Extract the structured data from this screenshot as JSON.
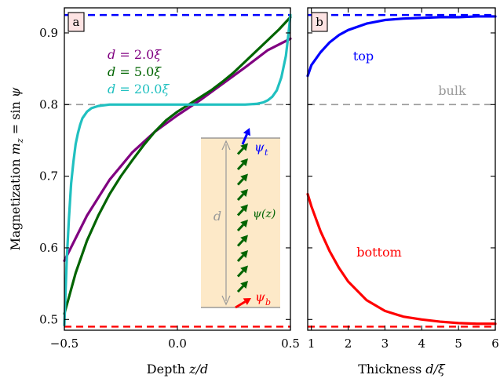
{
  "chart_data": [
    {
      "panel_label": "a",
      "type": "line",
      "xlabel_text": "Depth ",
      "xlabel_var": "z/d",
      "ylabel_text": "Magnetization ",
      "ylabel_var": "m_z = sin ψ",
      "xlim": [
        -0.5,
        0.5
      ],
      "ylim": [
        0.485,
        0.935
      ],
      "xticks": [
        -0.5,
        0.0,
        0.5
      ],
      "xtick_labels": [
        "−0.5",
        "0.0",
        "0.5"
      ],
      "yticks": [
        0.5,
        0.6,
        0.7,
        0.8,
        0.9
      ],
      "ytick_labels": [
        "0.5",
        "0.6",
        "0.7",
        "0.8",
        "0.9"
      ],
      "reference_lines": [
        {
          "y": 0.925,
          "color": "#0000ff",
          "style": "dashed"
        },
        {
          "y": 0.8,
          "color": "#999999",
          "style": "dashed"
        },
        {
          "y": 0.49,
          "color": "#ff0000",
          "style": "dashed"
        }
      ],
      "series": [
        {
          "name": "d = 2.0ξ",
          "color": "#800080",
          "x": [
            -0.5,
            -0.4,
            -0.3,
            -0.2,
            -0.1,
            0.0,
            0.1,
            0.2,
            0.3,
            0.4,
            0.5
          ],
          "y": [
            0.582,
            0.645,
            0.695,
            0.733,
            0.762,
            0.785,
            0.806,
            0.829,
            0.852,
            0.876,
            0.892
          ]
        },
        {
          "name": "d = 5.0ξ",
          "color": "#006400",
          "x": [
            -0.5,
            -0.45,
            -0.4,
            -0.35,
            -0.3,
            -0.25,
            -0.2,
            -0.15,
            -0.1,
            -0.05,
            0.0,
            0.05,
            0.1,
            0.15,
            0.2,
            0.25,
            0.3,
            0.35,
            0.4,
            0.45,
            0.5
          ],
          "y": [
            0.508,
            0.565,
            0.61,
            0.645,
            0.675,
            0.7,
            0.722,
            0.743,
            0.762,
            0.778,
            0.79,
            0.8,
            0.81,
            0.82,
            0.832,
            0.845,
            0.86,
            0.875,
            0.89,
            0.905,
            0.922
          ]
        },
        {
          "name": "d = 20.0ξ",
          "color": "#20c0c0",
          "x": [
            -0.5,
            -0.49,
            -0.48,
            -0.47,
            -0.46,
            -0.45,
            -0.44,
            -0.43,
            -0.42,
            -0.4,
            -0.38,
            -0.35,
            -0.3,
            -0.2,
            -0.1,
            0.0,
            0.1,
            0.2,
            0.3,
            0.35,
            0.38,
            0.4,
            0.42,
            0.44,
            0.46,
            0.48,
            0.49,
            0.5
          ],
          "y": [
            0.492,
            0.58,
            0.64,
            0.69,
            0.72,
            0.745,
            0.76,
            0.772,
            0.781,
            0.79,
            0.795,
            0.798,
            0.8,
            0.8,
            0.8,
            0.8,
            0.8,
            0.8,
            0.8,
            0.801,
            0.803,
            0.806,
            0.811,
            0.82,
            0.838,
            0.868,
            0.895,
            0.925
          ]
        }
      ],
      "legend": [
        "d = 2.0ξ",
        "d = 5.0ξ",
        "d = 20.0ξ"
      ],
      "inset": {
        "top_label": "ψ_t",
        "middle_label": "ψ(z)",
        "bottom_label": "ψ_b",
        "dimension_label": "d",
        "colors": {
          "top": "#0000ff",
          "middle": "#006400",
          "bottom": "#ff0000",
          "box": "#fde9c8",
          "dim": "#999999"
        }
      }
    },
    {
      "panel_label": "b",
      "type": "line",
      "xlabel_text": "Thickness ",
      "xlabel_var": "d/ξ",
      "xlim": [
        0.9,
        6.0
      ],
      "ylim": [
        0.485,
        0.935
      ],
      "xticks": [
        1,
        2,
        3,
        4,
        5,
        6
      ],
      "xtick_labels": [
        "1",
        "2",
        "3",
        "4",
        "5",
        "6"
      ],
      "reference_lines": [
        {
          "y": 0.925,
          "color": "#0000ff",
          "style": "dashed"
        },
        {
          "y": 0.8,
          "color": "#999999",
          "style": "dashed"
        },
        {
          "y": 0.49,
          "color": "#ff0000",
          "style": "dashed"
        }
      ],
      "series": [
        {
          "name": "top",
          "color": "#0000ff",
          "x": [
            0.9,
            1.0,
            1.25,
            1.5,
            1.75,
            2.0,
            2.5,
            3.0,
            3.5,
            4.0,
            4.5,
            5.0,
            5.5,
            6.0
          ],
          "y": [
            0.84,
            0.855,
            0.873,
            0.887,
            0.897,
            0.904,
            0.913,
            0.918,
            0.92,
            0.921,
            0.922,
            0.922,
            0.923,
            0.923
          ]
        },
        {
          "name": "bottom",
          "color": "#ff0000",
          "x": [
            0.9,
            1.0,
            1.25,
            1.5,
            1.75,
            2.0,
            2.5,
            3.0,
            3.5,
            4.0,
            4.5,
            5.0,
            5.5,
            6.0
          ],
          "y": [
            0.675,
            0.658,
            0.623,
            0.595,
            0.572,
            0.553,
            0.527,
            0.512,
            0.504,
            0.5,
            0.497,
            0.495,
            0.494,
            0.494
          ]
        }
      ],
      "annotations": [
        "top",
        "bulk",
        "bottom"
      ]
    }
  ]
}
